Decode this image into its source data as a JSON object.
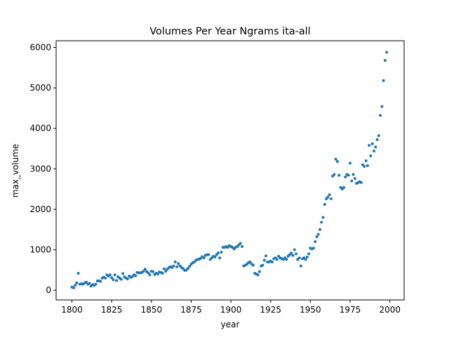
{
  "chart_data": {
    "type": "scatter",
    "title": "Volumes Per Year Ngrams ita-all",
    "x_label": "year",
    "y_label": "max_volume",
    "color": "#1f77b4",
    "grid": false,
    "xlim": [
      1790.05,
      2008.95
    ],
    "ylim": [
      -240,
      6165
    ],
    "xticks": [
      1800,
      1825,
      1850,
      1875,
      1900,
      1925,
      1950,
      1975,
      2000
    ],
    "yticks": [
      0,
      1000,
      2000,
      3000,
      4000,
      5000,
      6000
    ],
    "x": [
      1800,
      1801,
      1802,
      1803,
      1804,
      1805,
      1806,
      1807,
      1808,
      1809,
      1810,
      1811,
      1812,
      1813,
      1814,
      1815,
      1816,
      1817,
      1818,
      1819,
      1820,
      1821,
      1822,
      1823,
      1824,
      1825,
      1826,
      1827,
      1828,
      1829,
      1830,
      1831,
      1832,
      1833,
      1834,
      1835,
      1836,
      1837,
      1838,
      1839,
      1840,
      1841,
      1842,
      1843,
      1844,
      1845,
      1846,
      1847,
      1848,
      1849,
      1850,
      1851,
      1852,
      1853,
      1854,
      1855,
      1856,
      1857,
      1858,
      1859,
      1860,
      1861,
      1862,
      1863,
      1864,
      1865,
      1866,
      1867,
      1868,
      1869,
      1870,
      1871,
      1872,
      1873,
      1874,
      1875,
      1876,
      1877,
      1878,
      1879,
      1880,
      1881,
      1882,
      1883,
      1884,
      1885,
      1886,
      1887,
      1888,
      1889,
      1890,
      1891,
      1892,
      1893,
      1894,
      1895,
      1896,
      1897,
      1898,
      1899,
      1900,
      1901,
      1902,
      1903,
      1904,
      1905,
      1906,
      1907,
      1908,
      1909,
      1910,
      1911,
      1912,
      1913,
      1914,
      1915,
      1916,
      1917,
      1918,
      1919,
      1920,
      1921,
      1922,
      1923,
      1924,
      1925,
      1926,
      1927,
      1928,
      1929,
      1930,
      1931,
      1932,
      1933,
      1934,
      1935,
      1936,
      1937,
      1938,
      1939,
      1940,
      1941,
      1942,
      1943,
      1944,
      1945,
      1946,
      1947,
      1948,
      1949,
      1950,
      1951,
      1952,
      1953,
      1954,
      1955,
      1956,
      1957,
      1958,
      1959,
      1960,
      1961,
      1962,
      1963,
      1964,
      1965,
      1966,
      1967,
      1968,
      1969,
      1970,
      1971,
      1972,
      1973,
      1974,
      1975,
      1976,
      1977,
      1978,
      1979,
      1980,
      1981,
      1982,
      1983,
      1984,
      1985,
      1986,
      1987,
      1988,
      1989,
      1990,
      1991,
      1992,
      1993,
      1994,
      1995,
      1996,
      1997,
      1998
    ],
    "values": [
      80,
      60,
      120,
      180,
      420,
      150,
      160,
      150,
      180,
      200,
      150,
      170,
      100,
      140,
      120,
      150,
      230,
      230,
      220,
      300,
      320,
      300,
      380,
      350,
      380,
      310,
      260,
      380,
      240,
      330,
      300,
      270,
      410,
      330,
      300,
      280,
      350,
      320,
      340,
      380,
      360,
      440,
      430,
      430,
      440,
      470,
      520,
      460,
      430,
      380,
      470,
      460,
      390,
      420,
      400,
      450,
      440,
      420,
      530,
      470,
      520,
      560,
      580,
      560,
      600,
      700,
      580,
      660,
      600,
      560,
      530,
      490,
      500,
      540,
      590,
      640,
      680,
      700,
      740,
      760,
      770,
      790,
      830,
      800,
      860,
      880,
      880,
      760,
      800,
      840,
      820,
      880,
      920,
      800,
      940,
      1060,
      1060,
      1080,
      1060,
      1100,
      1080,
      1060,
      1020,
      1060,
      1080,
      1120,
      1160,
      1080,
      600,
      620,
      640,
      680,
      700,
      650,
      620,
      420,
      400,
      380,
      460,
      600,
      620,
      740,
      850,
      700,
      700,
      720,
      700,
      780,
      800,
      760,
      840,
      800,
      780,
      760,
      800,
      760,
      840,
      880,
      920,
      860,
      1000,
      900,
      760,
      800,
      600,
      780,
      800,
      760,
      820,
      900,
      1040,
      1020,
      1040,
      1200,
      1320,
      1380,
      1500,
      1680,
      1800,
      2120,
      2260,
      2300,
      2360,
      2260,
      2820,
      2860,
      3240,
      3180,
      2840,
      2540,
      2500,
      2540,
      2800,
      2860,
      2840,
      3140,
      2700,
      2860,
      2760,
      2640,
      2660,
      2680,
      2660,
      3100,
      3060,
      3200,
      3080,
      3580,
      3320,
      3620,
      3440,
      3540,
      3720,
      3820,
      4320,
      4540,
      5180,
      5680,
      5880
    ]
  }
}
